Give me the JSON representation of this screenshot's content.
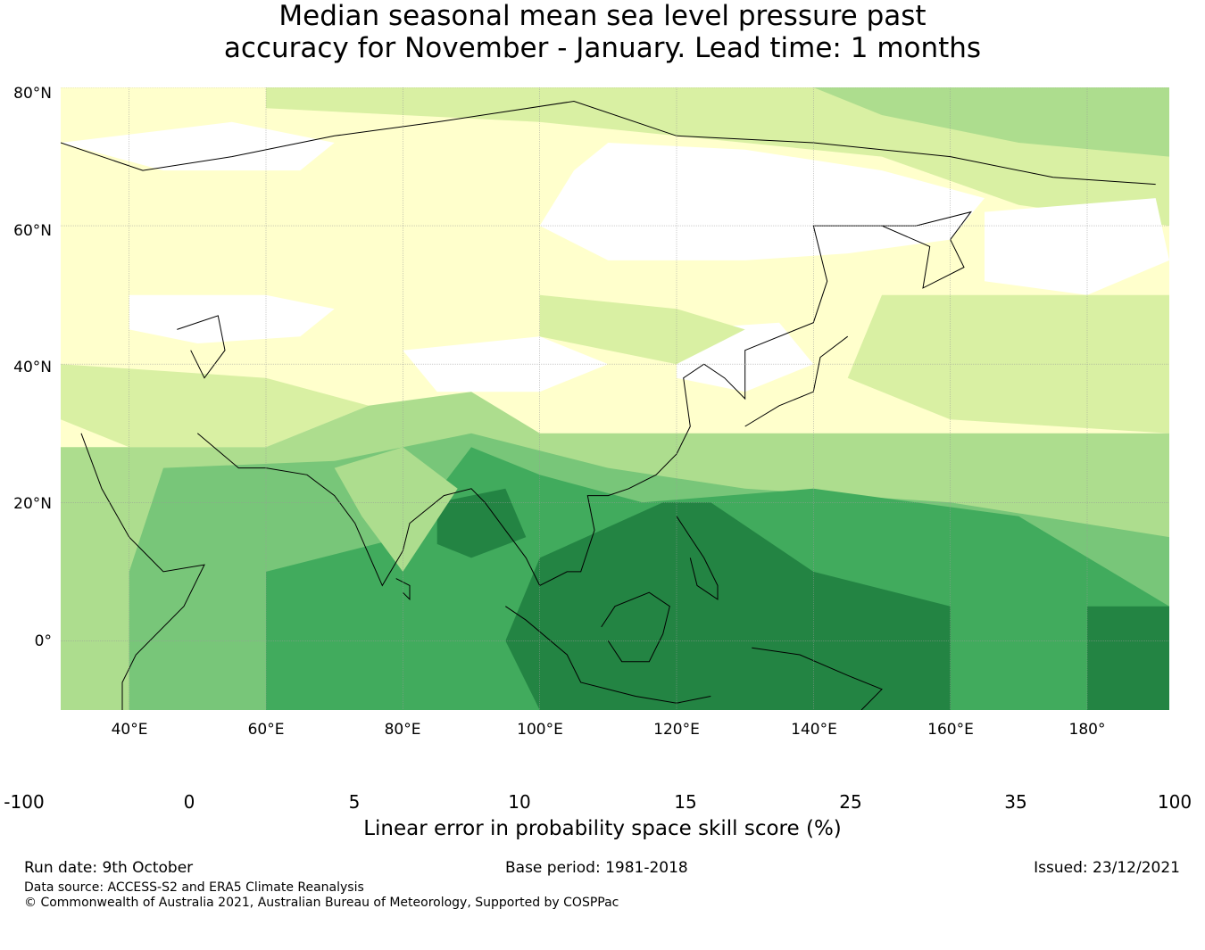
{
  "title": {
    "line1": "Median seasonal mean sea level pressure past",
    "line2": "accuracy for November - January. Lead time: 1 months"
  },
  "map": {
    "lon_range": [
      30,
      192
    ],
    "lat_range": [
      -10,
      80
    ],
    "lat_ticks": [
      "80°N",
      "60°N",
      "40°N",
      "20°N",
      "0°"
    ],
    "lat_values": [
      80,
      60,
      40,
      20,
      0
    ],
    "lon_ticks": [
      "40°E",
      "60°E",
      "80°E",
      "100°E",
      "120°E",
      "140°E",
      "160°E",
      "180°"
    ],
    "lon_values": [
      40,
      60,
      80,
      100,
      120,
      140,
      160,
      180
    ],
    "gridlines": true,
    "region": "Asia and Western Pacific",
    "category_colors": [
      "#ffffff",
      "#ffffcc",
      "#d9f0a3",
      "#addd8e",
      "#78c679",
      "#41ab5d",
      "#238443"
    ],
    "zones": [
      {
        "category": 5,
        "desc": "tropical western Pacific / Indian Ocean",
        "lon": [
          50,
          192
        ],
        "lat": [
          -10,
          25
        ]
      },
      {
        "category": 6,
        "desc": "Maritime continent core",
        "lon": [
          100,
          150
        ],
        "lat": [
          -10,
          18
        ]
      }
    ]
  },
  "colorbar": {
    "boundaries": [
      "-100",
      "0",
      "5",
      "10",
      "15",
      "25",
      "35",
      "100"
    ],
    "colors": [
      "#ffffff",
      "#ffffcc",
      "#d9f0a3",
      "#addd8e",
      "#78c679",
      "#41ab5d",
      "#238443"
    ],
    "label": "Linear error in probability space skill score (%)"
  },
  "footer": {
    "run_date": "Run date: 9th October",
    "base_period": "Base period: 1981-2018",
    "issued": "Issued: 23/12/2021",
    "data_source": "Data source: ACCESS-S2 and ERA5 Climate Reanalysis",
    "copyright": "© Commonwealth of Australia 2021, Australian Bureau of Meteorology, Supported by COSPPac"
  }
}
